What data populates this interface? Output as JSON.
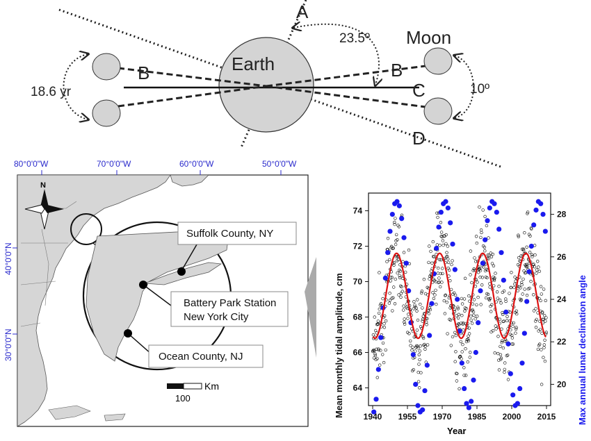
{
  "orbit_diagram": {
    "labels": {
      "a": "A",
      "b_left": "B",
      "b_right": "B",
      "c": "C",
      "d": "D",
      "earth": "Earth",
      "moon": "Moon",
      "tilt": "23.5º",
      "inclination": "10º",
      "cycle": "18.6 yr"
    }
  },
  "map": {
    "longitudes": [
      "80°0'0\"W",
      "70°0'0\"W",
      "60°0'0\"W",
      "50°0'0\"W"
    ],
    "latitudes": [
      "40°0'0\"N",
      "30°0'0\"N"
    ],
    "north_label": "N",
    "scale_unit": "Km",
    "scale_value": "100",
    "callouts": {
      "suffolk": "Suffolk County, NY",
      "battery_1": "Battery Park Station",
      "battery_2": "New York City",
      "ocean": "Ocean County, NJ"
    },
    "colors": {
      "land": "#d6d6d6",
      "water": "#ffffff",
      "coords": "#2a2acc"
    }
  },
  "chart_data": {
    "type": "scatter",
    "xlabel": "Year",
    "ylabel_left": "Mean monthly tidal amplitude, cm",
    "ylabel_right": "Max annual lunar declination angle",
    "x_ticks": [
      1940,
      1955,
      1970,
      1985,
      2000,
      2015
    ],
    "y_left_ticks": [
      64,
      66,
      68,
      70,
      72,
      74
    ],
    "y_right_ticks": [
      20,
      22,
      24,
      26,
      28
    ],
    "xlim": [
      1940,
      2015
    ],
    "ylim_left": [
      63,
      75
    ],
    "ylim_right": [
      19,
      29
    ],
    "colors": {
      "monthly": "#000000",
      "declination": "#1a1aee",
      "fit": "#dd1111"
    },
    "series": [
      {
        "kind": "fit",
        "period_years": 18.6,
        "mean": 69.2,
        "amplitude": 2.4,
        "peak_year": 1950.3,
        "description_values": "sinusoid fit of monthly amplitude"
      },
      {
        "kind": "declination",
        "x": [
          1940.5,
          1941.5,
          1942.5,
          1943.5,
          1944.5,
          1945.5,
          1946.5,
          1947.5,
          1948.5,
          1949.5,
          1950.5,
          1951.5,
          1952.5,
          1953.5,
          1954.5,
          1955.5,
          1956.5,
          1957.5,
          1958.5,
          1959.5,
          1960.5,
          1961.5,
          1962.5,
          1963.5,
          1964.5,
          1965.5,
          1966.5,
          1967.5,
          1968.5,
          1969.5,
          1970.5,
          1971.5,
          1972.5,
          1973.5,
          1974.5,
          1975.5,
          1976.5,
          1977.5,
          1978.5,
          1979.5,
          1980.5,
          1981.5,
          1982.5,
          1983.5,
          1984.5,
          1985.5,
          1986.5,
          1987.5,
          1988.5,
          1989.5,
          1990.5,
          1991.5,
          1992.5,
          1993.5,
          1994.5,
          1995.5,
          1996.5,
          1997.5,
          1998.5,
          1999.5,
          2000.5,
          2001.5,
          2002.5,
          2003.5,
          2004.5,
          2005.5,
          2006.5,
          2007.5,
          2008.5,
          2009.5,
          2010.5,
          2011.5,
          2012.5,
          2013.5,
          2014.5
        ],
        "y": [
          18.7,
          19.3,
          20.7,
          22.2,
          23.6,
          25.0,
          26.2,
          27.2,
          28.0,
          28.5,
          28.6,
          28.4,
          27.8,
          26.9,
          25.7,
          24.4,
          22.9,
          21.4,
          20.0,
          19.0,
          18.7,
          18.8,
          19.7,
          20.9,
          22.3,
          23.8,
          25.2,
          26.4,
          27.4,
          28.1,
          28.5,
          28.6,
          28.3,
          27.6,
          26.6,
          25.4,
          24.0,
          22.5,
          21.0,
          19.8,
          19.1,
          18.9,
          19.2,
          20.2,
          21.5,
          22.9,
          24.4,
          25.7,
          26.8,
          27.7,
          28.3,
          28.6,
          28.5,
          28.1,
          27.3,
          26.2,
          24.9,
          23.4,
          21.9,
          20.5,
          19.5,
          19.0,
          19.1,
          19.8,
          21.0,
          22.4,
          23.9,
          25.3,
          26.5,
          27.5,
          28.2,
          28.6,
          28.5,
          28.0,
          27.2
        ]
      },
      {
        "kind": "monthly",
        "description_values": "monthly mean tidal amplitudes, 1940–2015"
      }
    ]
  }
}
